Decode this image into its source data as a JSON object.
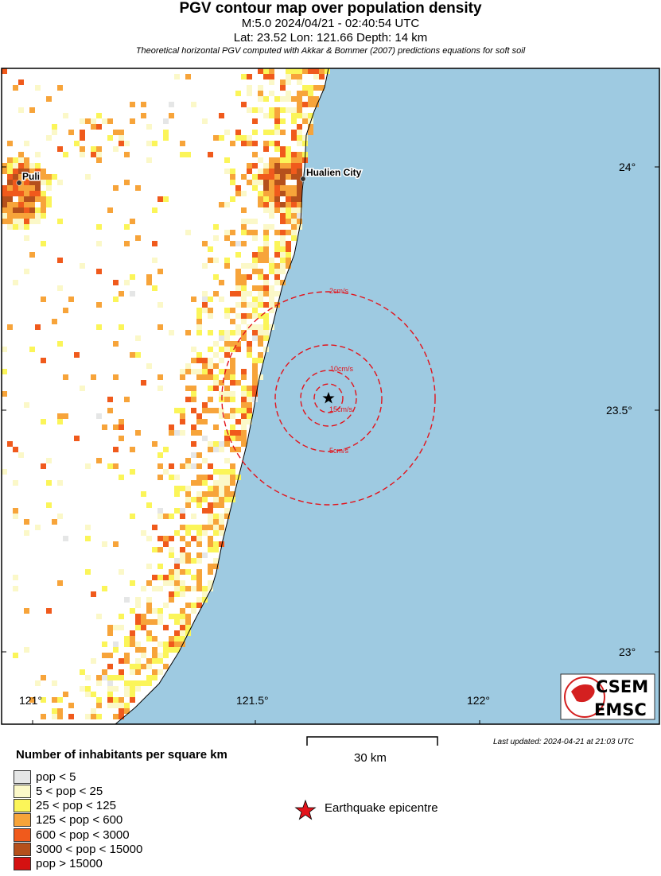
{
  "header": {
    "title": "PGV contour map over population density",
    "subtitle1": "M:5.0 2024/04/21 - 02:40:54 UTC",
    "subtitle2": "Lat: 23.52 Lon: 121.66 Depth: 14 km",
    "subtitle3": "Theoretical horizontal PGV computed with Akkar & Bommer (2007) predictions equations for soft soil"
  },
  "map": {
    "sea_color": "#9ecae1",
    "land_color": "#ffffff",
    "contour_color": "#e3131b",
    "epicenter": {
      "lat": 23.52,
      "lon": 121.66
    },
    "lon_ticks": [
      "121°",
      "121.5°",
      "122°"
    ],
    "lat_ticks": [
      "24°",
      "23.5°",
      "23°"
    ],
    "cities": [
      {
        "name": "Puli"
      },
      {
        "name": "Hualien City"
      }
    ],
    "contours": [
      {
        "label": "2cm/s"
      },
      {
        "label": "5cm/s"
      },
      {
        "label": "10cm/s"
      },
      {
        "label": "15cm/s"
      }
    ],
    "logo": {
      "top": "CSEM",
      "bottom": "EMSC"
    }
  },
  "legend": {
    "title": "Number of inhabitants per square km",
    "items": [
      {
        "label": "pop < 5",
        "color": "#e5e6e6"
      },
      {
        "label": "5 < pop < 25",
        "color": "#fbf8c8"
      },
      {
        "label": "25 < pop < 125",
        "color": "#fbf559"
      },
      {
        "label": "125 < pop < 600",
        "color": "#f7a43a"
      },
      {
        "label": "600 < pop < 3000",
        "color": "#f05a1c"
      },
      {
        "label": "3000 < pop < 15000",
        "color": "#b5501c"
      },
      {
        "label": "pop > 15000",
        "color": "#d41111"
      }
    ],
    "epicentre_label": "Earthquake epicentre",
    "scale_label": "30 km",
    "updated": "Last updated: 2024-04-21 at 21:03 UTC"
  }
}
